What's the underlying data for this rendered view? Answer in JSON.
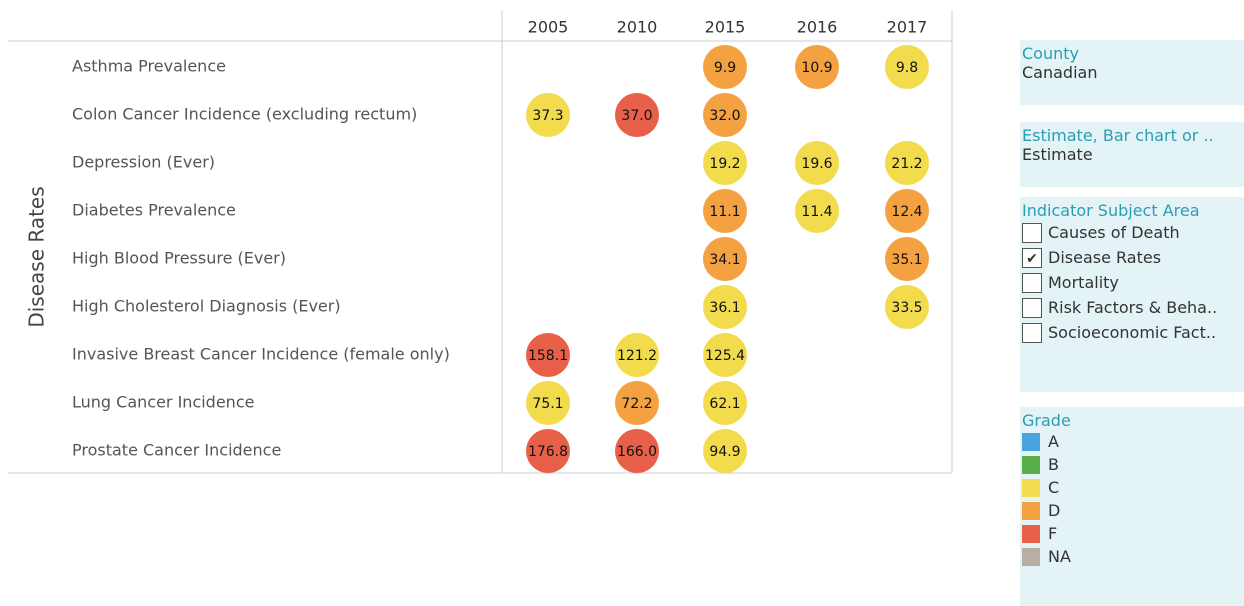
{
  "table": {
    "row_header": "Disease Rates",
    "columns": [
      "2005",
      "2010",
      "2015",
      "2016",
      "2017"
    ],
    "rows": [
      {
        "label": "Asthma Prevalence",
        "cells": [
          null,
          null,
          {
            "text": "9.9",
            "grade": "D"
          },
          {
            "text": "10.9",
            "grade": "D"
          },
          {
            "text": "9.8",
            "grade": "C"
          }
        ]
      },
      {
        "label": "Colon Cancer Incidence (excluding rectum)",
        "cells": [
          {
            "text": "37.3",
            "grade": "C"
          },
          {
            "text": "37.0",
            "grade": "F"
          },
          {
            "text": "32.0",
            "grade": "D"
          },
          null,
          null
        ]
      },
      {
        "label": "Depression (Ever)",
        "cells": [
          null,
          null,
          {
            "text": "19.2",
            "grade": "C"
          },
          {
            "text": "19.6",
            "grade": "C"
          },
          {
            "text": "21.2",
            "grade": "C"
          }
        ]
      },
      {
        "label": "Diabetes Prevalence",
        "cells": [
          null,
          null,
          {
            "text": "11.1",
            "grade": "D"
          },
          {
            "text": "11.4",
            "grade": "C"
          },
          {
            "text": "12.4",
            "grade": "D"
          }
        ]
      },
      {
        "label": "High Blood Pressure (Ever)",
        "cells": [
          null,
          null,
          {
            "text": "34.1",
            "grade": "D"
          },
          null,
          {
            "text": "35.1",
            "grade": "D"
          }
        ]
      },
      {
        "label": "High Cholesterol Diagnosis (Ever)",
        "cells": [
          null,
          null,
          {
            "text": "36.1",
            "grade": "C"
          },
          null,
          {
            "text": "33.5",
            "grade": "C"
          }
        ]
      },
      {
        "label": "Invasive Breast Cancer Incidence (female only)",
        "cells": [
          {
            "text": "158.1",
            "grade": "F"
          },
          {
            "text": "121.2",
            "grade": "C"
          },
          {
            "text": "125.4",
            "grade": "C"
          },
          null,
          null
        ]
      },
      {
        "label": "Lung Cancer Incidence",
        "cells": [
          {
            "text": "75.1",
            "grade": "C"
          },
          {
            "text": "72.2",
            "grade": "D"
          },
          {
            "text": "62.1",
            "grade": "C"
          },
          null,
          null
        ]
      },
      {
        "label": "Prostate Cancer Incidence",
        "cells": [
          {
            "text": "176.8",
            "grade": "F"
          },
          {
            "text": "166.0",
            "grade": "F"
          },
          {
            "text": "94.9",
            "grade": "C"
          },
          null,
          null
        ]
      }
    ]
  },
  "filters": {
    "county": {
      "title": "County",
      "value": "Canadian"
    },
    "measure": {
      "title": "Estimate, Bar chart or ..",
      "value": "Estimate"
    },
    "subject": {
      "title": "Indicator Subject Area",
      "options": [
        {
          "label": "Causes of Death",
          "checked": false
        },
        {
          "label": "Disease Rates",
          "checked": true
        },
        {
          "label": "Mortality",
          "checked": false
        },
        {
          "label": "Risk Factors & Beha..",
          "checked": false
        },
        {
          "label": "Socioeconomic Fact..",
          "checked": false
        }
      ]
    }
  },
  "legend": {
    "title": "Grade",
    "items": [
      {
        "label": "A",
        "color": "#4aa3df"
      },
      {
        "label": "B",
        "color": "#5aae4a"
      },
      {
        "label": "C",
        "color": "#f2dc4e"
      },
      {
        "label": "D",
        "color": "#f4a142"
      },
      {
        "label": "F",
        "color": "#e8604a"
      },
      {
        "label": "NA",
        "color": "#b8aea6"
      }
    ]
  }
}
